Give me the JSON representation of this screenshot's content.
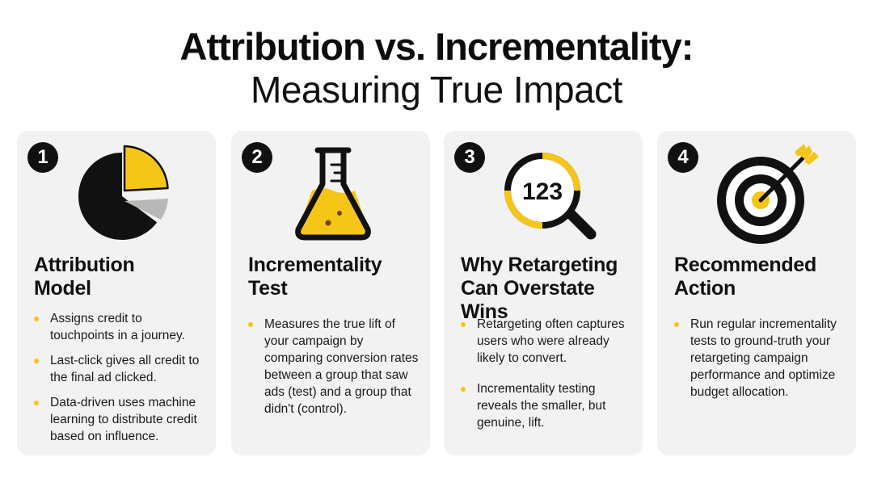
{
  "header": {
    "title": "Attribution vs. Incrementality:",
    "subtitle": "Measuring True Impact"
  },
  "colors": {
    "accent": "#f5c518",
    "dark": "#111111",
    "card_bg": "#f2f2f2",
    "muted": "#b8b8b8"
  },
  "cards": [
    {
      "number": "1",
      "icon": "pie-chart-icon",
      "title_line1": "Attribution",
      "title_line2": "Model",
      "bullets": [
        "Assigns credit to touchpoints in a journey.",
        "Last-click gives all credit to the final ad clicked.",
        "Data-driven uses machine learning to distribute credit based on influence."
      ]
    },
    {
      "number": "2",
      "icon": "flask-icon",
      "title_line1": "Incrementality",
      "title_line2": "Test",
      "bullets": [
        "Measures the true lift of your campaign by comparing conversion rates between a group that saw ads (test) and a group that didn't (control)."
      ]
    },
    {
      "number": "3",
      "icon": "magnifier-icon",
      "magnifier_text": "123",
      "title_line1": "Why Retargeting",
      "title_line2": "Can Overstate Wins",
      "bullets": [
        "Retargeting often captures users who were already likely to convert.",
        "Incrementality testing reveals the smaller, but genuine, lift."
      ]
    },
    {
      "number": "4",
      "icon": "target-icon",
      "title_line1": "Recommended",
      "title_line2": "Action",
      "bullets": [
        "Run regular incrementality tests to ground-truth your retargeting campaign performance and optimize budget allocation."
      ]
    }
  ]
}
